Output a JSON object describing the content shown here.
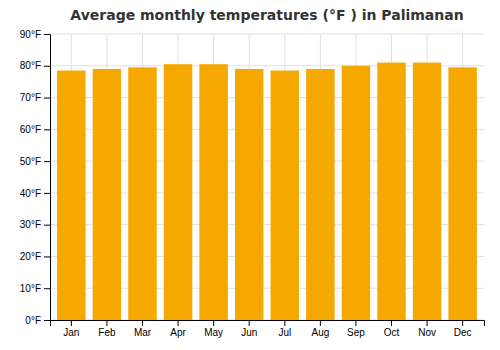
{
  "chart_data": {
    "type": "bar",
    "title": "Average monthly temperatures (°F ) in Palimanan",
    "categories": [
      "Jan",
      "Feb",
      "Mar",
      "Apr",
      "May",
      "Jun",
      "Jul",
      "Aug",
      "Sep",
      "Oct",
      "Nov",
      "Dec"
    ],
    "values": [
      78.5,
      79.0,
      79.5,
      80.5,
      80.5,
      79.0,
      78.5,
      79.0,
      80.0,
      81.0,
      81.0,
      79.5
    ],
    "color": "#F5A800",
    "ylim": [
      0,
      90
    ],
    "yticks": [
      {
        "value": 0,
        "label": "0°F"
      },
      {
        "value": 10,
        "label": "10°F"
      },
      {
        "value": 20,
        "label": "20°F"
      },
      {
        "value": 30,
        "label": "30°F"
      },
      {
        "value": 40,
        "label": "40°F"
      },
      {
        "value": 50,
        "label": "50°F"
      },
      {
        "value": 60,
        "label": "60°F"
      },
      {
        "value": 70,
        "label": "70°F"
      },
      {
        "value": 80,
        "label": "80°F"
      },
      {
        "value": 90,
        "label": "90°F"
      }
    ],
    "grid": true
  }
}
